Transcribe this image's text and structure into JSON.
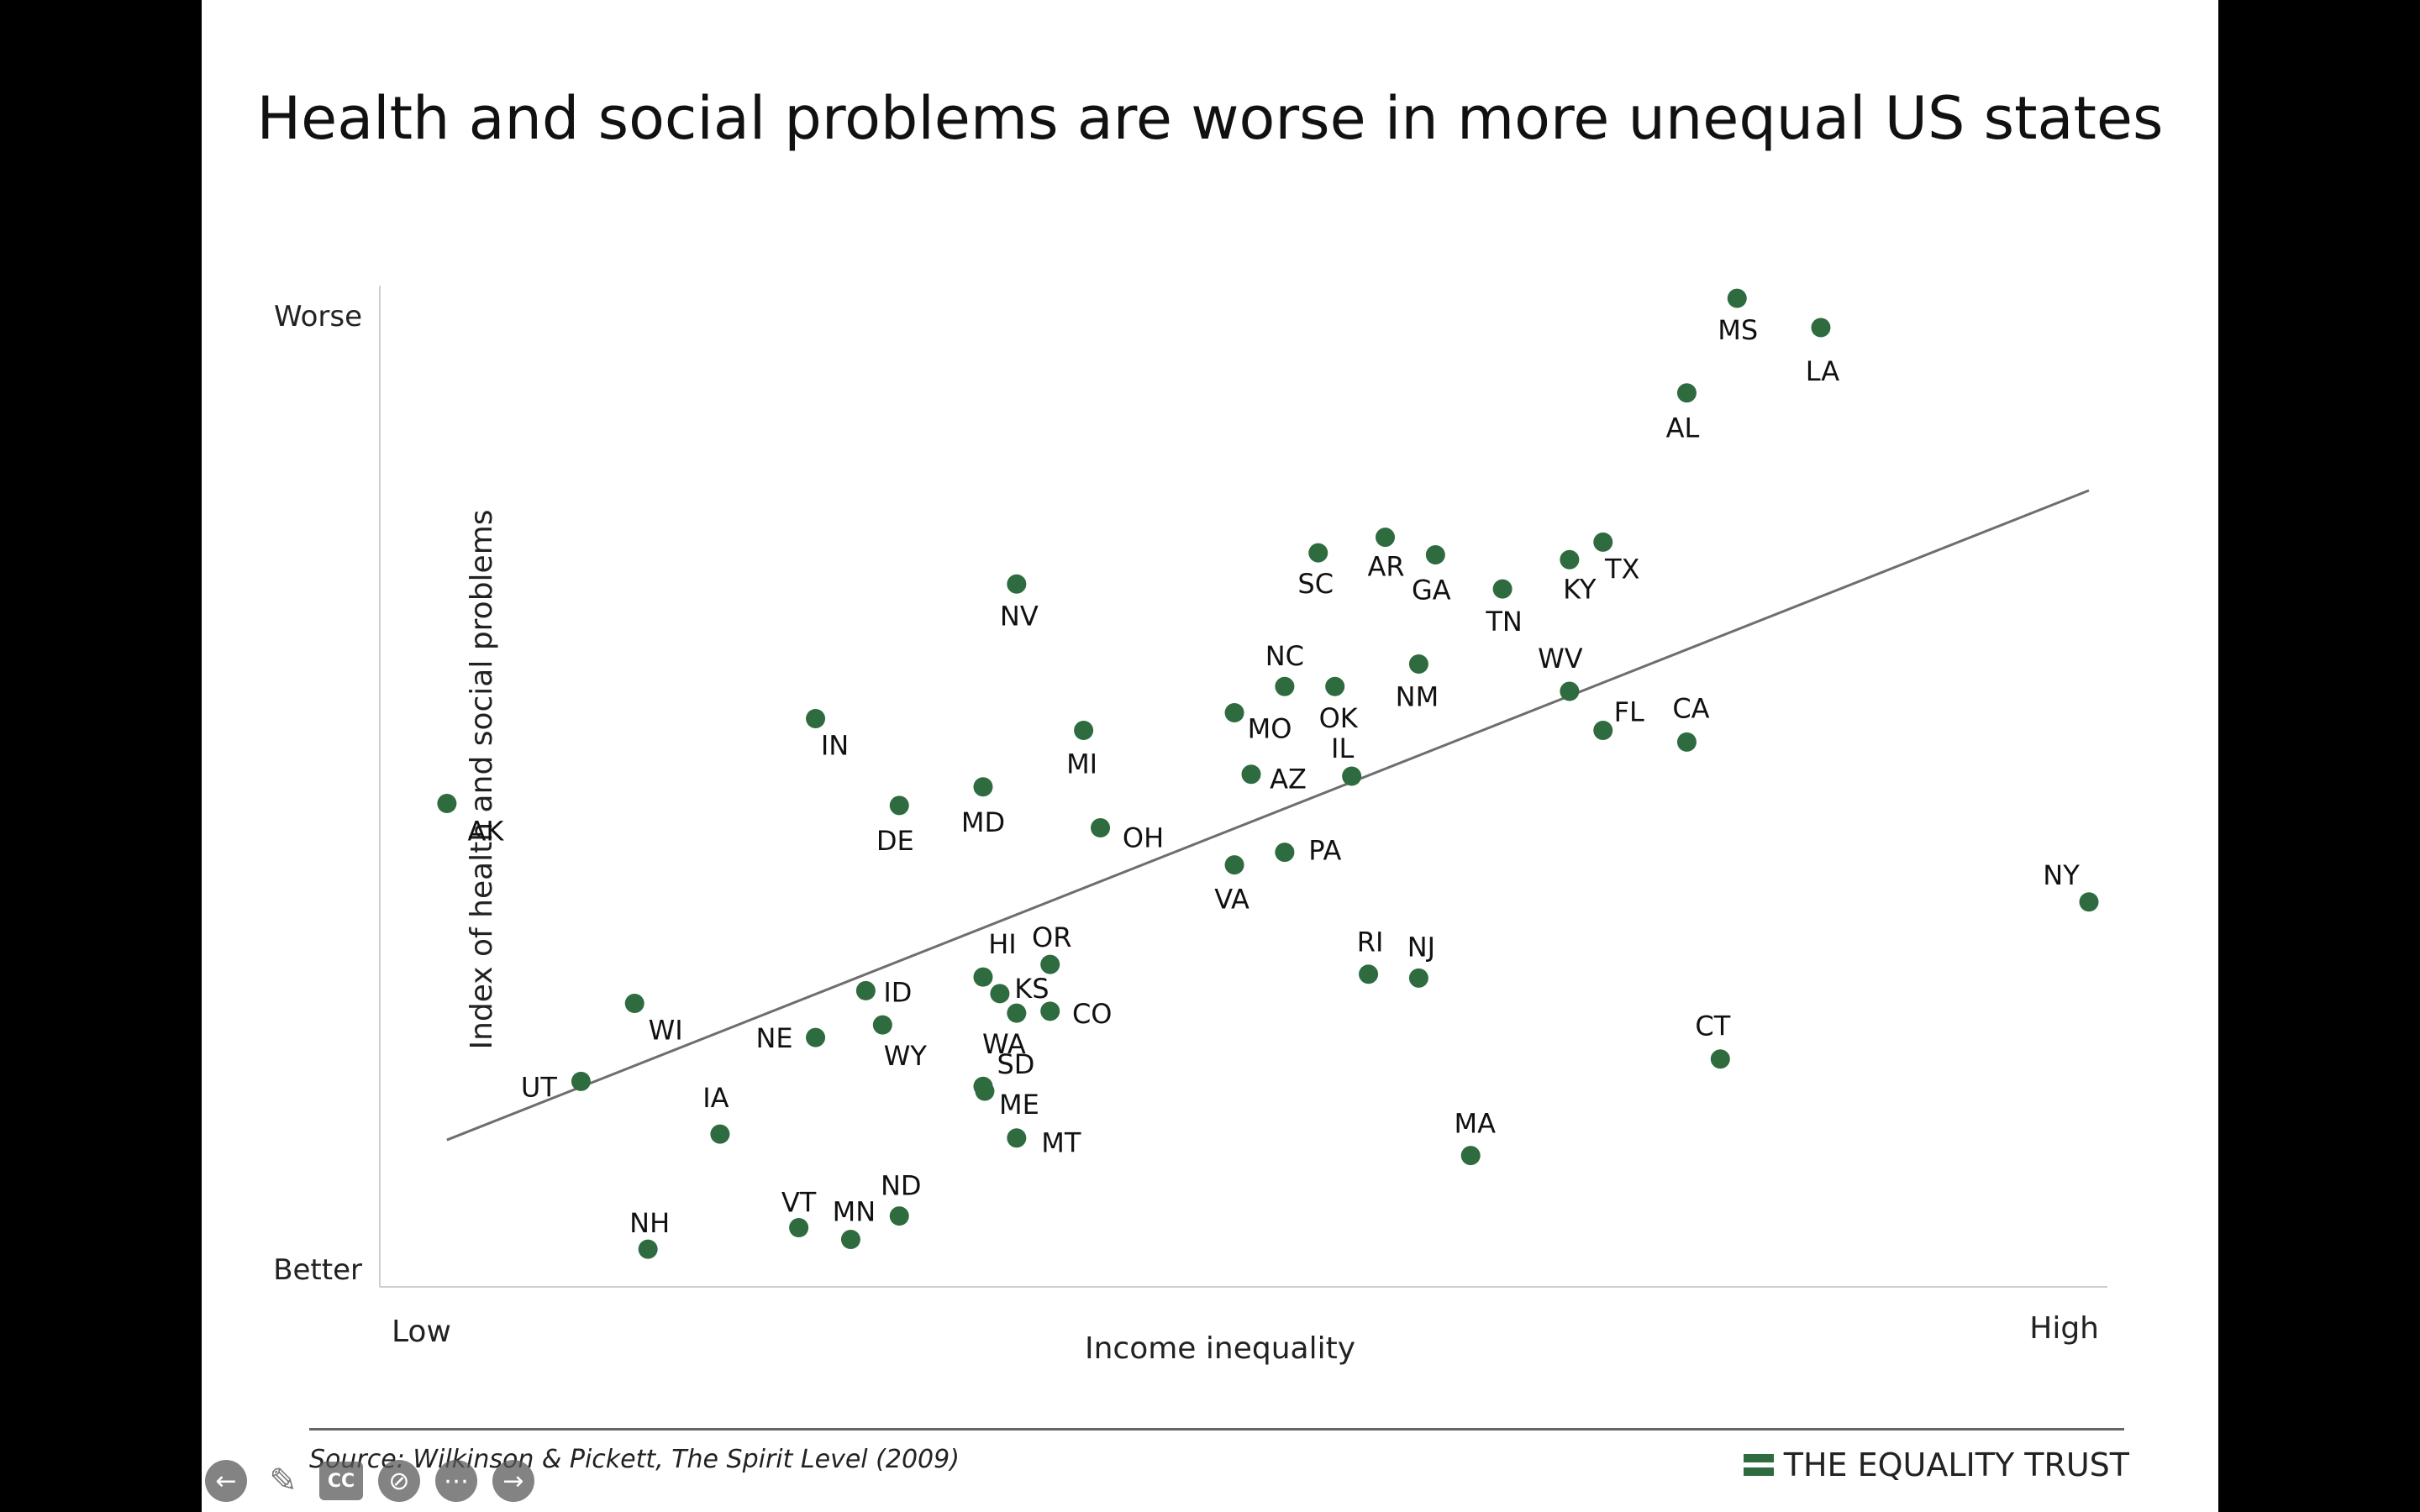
{
  "title": "Health and social problems are worse in more unequal US states",
  "source": "Source: Wilkinson & Pickett, The Spirit Level (2009)",
  "brand": "THE EQUALITY TRUST",
  "colors": {
    "point": "#2e6b3e",
    "trend": "#6e6e6e",
    "axis": "#cfcfcf"
  },
  "controls": [
    {
      "name": "previous-slide-icon",
      "glyph": "←"
    },
    {
      "name": "pen-icon",
      "glyph": "✎"
    },
    {
      "name": "closed-captions-icon",
      "glyph": "CC"
    },
    {
      "name": "camera-off-icon",
      "glyph": "⊘"
    },
    {
      "name": "more-options-icon",
      "glyph": "⋯"
    },
    {
      "name": "next-slide-icon",
      "glyph": "→"
    }
  ],
  "chart_data": {
    "type": "scatter",
    "xlabel": "Income inequality",
    "ylabel": "Index of health and social problems",
    "x_tick_labels": [
      "Low",
      "High"
    ],
    "y_tick_labels": [
      "Worse",
      "Better"
    ],
    "xlim": [
      0,
      100
    ],
    "ylim": [
      0,
      100
    ],
    "grid": false,
    "trendline": [
      [
        2,
        13.0
      ],
      [
        100,
        79.6
      ]
    ],
    "points": [
      {
        "label": "AK",
        "x": 2.0,
        "y": 47.5
      },
      {
        "label": "UT",
        "x": 10.0,
        "y": 19.0
      },
      {
        "label": "WI",
        "x": 13.2,
        "y": 27.0
      },
      {
        "label": "NH",
        "x": 14.0,
        "y": 1.8
      },
      {
        "label": "IA",
        "x": 18.3,
        "y": 13.6
      },
      {
        "label": "NE",
        "x": 24.0,
        "y": 23.5
      },
      {
        "label": "IN",
        "x": 24.0,
        "y": 56.2
      },
      {
        "label": "VT",
        "x": 23.0,
        "y": 4.0
      },
      {
        "label": "MN",
        "x": 26.1,
        "y": 2.8
      },
      {
        "label": "ND",
        "x": 29.0,
        "y": 5.2
      },
      {
        "label": "ID",
        "x": 27.0,
        "y": 28.3
      },
      {
        "label": "WY",
        "x": 28.0,
        "y": 24.8
      },
      {
        "label": "DE",
        "x": 29.0,
        "y": 47.3
      },
      {
        "label": "MD",
        "x": 34.0,
        "y": 49.2
      },
      {
        "label": "HI",
        "x": 34.0,
        "y": 29.7
      },
      {
        "label": "KS",
        "x": 35.0,
        "y": 28.0
      },
      {
        "label": "WA",
        "x": 36.0,
        "y": 26.0
      },
      {
        "label": "SD",
        "x": 34.0,
        "y": 18.5
      },
      {
        "label": "ME",
        "x": 34.1,
        "y": 18.0
      },
      {
        "label": "MT",
        "x": 36.0,
        "y": 13.2
      },
      {
        "label": "NV",
        "x": 36.0,
        "y": 70.0
      },
      {
        "label": "OR",
        "x": 38.0,
        "y": 31.0
      },
      {
        "label": "CO",
        "x": 38.0,
        "y": 26.2
      },
      {
        "label": "MI",
        "x": 40.0,
        "y": 55.0
      },
      {
        "label": "OH",
        "x": 41.0,
        "y": 45.0
      },
      {
        "label": "MO",
        "x": 49.0,
        "y": 56.8
      },
      {
        "label": "VA",
        "x": 49.0,
        "y": 41.2
      },
      {
        "label": "AZ",
        "x": 50.0,
        "y": 50.5
      },
      {
        "label": "NC",
        "x": 52.0,
        "y": 59.5
      },
      {
        "label": "PA",
        "x": 52.0,
        "y": 42.5
      },
      {
        "label": "SC",
        "x": 54.0,
        "y": 73.2
      },
      {
        "label": "OK",
        "x": 55.0,
        "y": 59.5
      },
      {
        "label": "IL",
        "x": 56.0,
        "y": 50.3
      },
      {
        "label": "RI",
        "x": 57.0,
        "y": 30.0
      },
      {
        "label": "AR",
        "x": 58.0,
        "y": 74.8
      },
      {
        "label": "GA",
        "x": 61.0,
        "y": 73.0
      },
      {
        "label": "NM",
        "x": 60.0,
        "y": 61.8
      },
      {
        "label": "NJ",
        "x": 60.0,
        "y": 29.6
      },
      {
        "label": "MA",
        "x": 63.1,
        "y": 11.4
      },
      {
        "label": "TN",
        "x": 65.0,
        "y": 69.5
      },
      {
        "label": "KY",
        "x": 69.0,
        "y": 72.5
      },
      {
        "label": "WV",
        "x": 69.0,
        "y": 59.0
      },
      {
        "label": "TX",
        "x": 71.0,
        "y": 74.3
      },
      {
        "label": "FL",
        "x": 71.0,
        "y": 55.0
      },
      {
        "label": "AL",
        "x": 76.0,
        "y": 89.6
      },
      {
        "label": "CA",
        "x": 76.0,
        "y": 53.8
      },
      {
        "label": "CT",
        "x": 78.0,
        "y": 21.3
      },
      {
        "label": "MS",
        "x": 79.0,
        "y": 99.3
      },
      {
        "label": "LA",
        "x": 84.0,
        "y": 96.3
      },
      {
        "label": "NY",
        "x": 100.0,
        "y": 37.4
      }
    ]
  }
}
